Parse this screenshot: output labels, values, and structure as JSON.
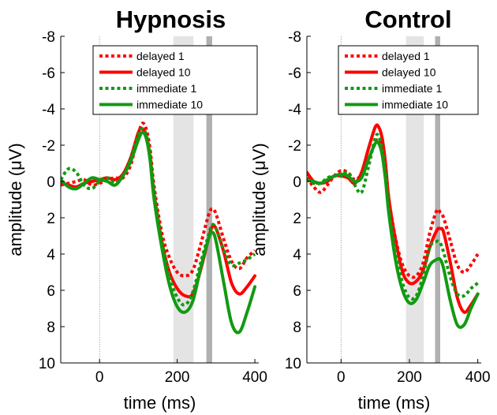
{
  "chart_data": [
    {
      "type": "line",
      "title": "Hypnosis",
      "xlabel": "time (ms)",
      "ylabel": "amplitude (μV)",
      "xlim": [
        -100,
        410
      ],
      "ylim": [
        -8,
        10
      ],
      "y_axis_reversed": true,
      "xticks": [
        0,
        200,
        400
      ],
      "yticks": [
        -8,
        -6,
        -4,
        -2,
        0,
        2,
        4,
        6,
        8,
        10
      ],
      "zero_line_x": 0,
      "shaded_windows": [
        {
          "x": [
            190,
            242
          ],
          "color": "#e4e4e4"
        },
        {
          "x": [
            275,
            290
          ],
          "color": "#b0b0b0"
        }
      ],
      "legend": "top-right",
      "series": [
        {
          "name": "delayed 1",
          "color": "#ff0000",
          "style": "dotted",
          "x": [
            -100,
            -80,
            -60,
            -40,
            -20,
            0,
            20,
            40,
            60,
            80,
            100,
            110,
            120,
            130,
            140,
            160,
            180,
            200,
            220,
            240,
            260,
            280,
            290,
            300,
            320,
            340,
            360,
            380,
            400
          ],
          "y": [
            0.2,
            0.1,
            0.0,
            -0.1,
            0.2,
            0.1,
            -0.1,
            -0.2,
            -0.2,
            -0.9,
            -2.6,
            -3.2,
            -2.9,
            -1.8,
            0.2,
            2.8,
            4.2,
            5.0,
            5.2,
            4.9,
            3.5,
            1.9,
            1.5,
            1.8,
            3.2,
            4.4,
            4.8,
            4.2,
            3.8
          ]
        },
        {
          "name": "delayed 10",
          "color": "#ff0000",
          "style": "solid",
          "x": [
            -100,
            -80,
            -60,
            -40,
            -20,
            0,
            20,
            40,
            60,
            80,
            100,
            110,
            120,
            130,
            140,
            160,
            180,
            200,
            220,
            240,
            260,
            280,
            290,
            300,
            320,
            340,
            360,
            380,
            400
          ],
          "y": [
            0.1,
            0.2,
            0.3,
            0.1,
            0.0,
            -0.1,
            -0.2,
            -0.1,
            -0.4,
            -1.3,
            -2.7,
            -2.9,
            -2.5,
            -1.3,
            0.7,
            3.3,
            5.0,
            5.9,
            6.3,
            6.2,
            4.9,
            3.2,
            2.5,
            2.6,
            3.9,
            5.6,
            6.2,
            5.8,
            5.2
          ]
        },
        {
          "name": "immediate 1",
          "color": "#119a11",
          "style": "dotted",
          "x": [
            -100,
            -80,
            -60,
            -40,
            -20,
            0,
            20,
            40,
            60,
            80,
            100,
            110,
            120,
            130,
            140,
            160,
            180,
            200,
            220,
            240,
            260,
            280,
            290,
            300,
            320,
            340,
            360,
            380,
            400
          ],
          "y": [
            -0.1,
            -0.7,
            -0.5,
            0.2,
            0.4,
            0.0,
            -0.2,
            0.1,
            -0.3,
            -1.2,
            -2.6,
            -2.9,
            -2.6,
            -1.5,
            0.5,
            3.2,
            5.2,
            6.4,
            6.8,
            6.1,
            4.5,
            3.0,
            2.4,
            2.6,
            3.8,
            4.6,
            4.5,
            4.3,
            4.0
          ]
        },
        {
          "name": "immediate 10",
          "color": "#119a11",
          "style": "solid",
          "x": [
            -100,
            -80,
            -60,
            -40,
            -20,
            0,
            20,
            40,
            60,
            80,
            100,
            110,
            120,
            130,
            140,
            160,
            180,
            200,
            220,
            240,
            260,
            280,
            290,
            300,
            320,
            340,
            360,
            380,
            400
          ],
          "y": [
            -0.1,
            0.3,
            0.4,
            0.1,
            -0.2,
            -0.1,
            0.0,
            0.2,
            -0.3,
            -1.1,
            -2.3,
            -2.7,
            -2.4,
            -1.2,
            0.9,
            3.6,
            5.7,
            6.9,
            7.2,
            6.6,
            4.8,
            3.2,
            2.8,
            3.3,
            5.6,
            7.8,
            8.3,
            7.2,
            5.8
          ]
        }
      ]
    },
    {
      "type": "line",
      "title": "Control",
      "xlabel": "time (ms)",
      "ylabel": "amplitude (μV)",
      "xlim": [
        -100,
        410
      ],
      "ylim": [
        -8,
        10
      ],
      "y_axis_reversed": true,
      "xticks": [
        0,
        200,
        400
      ],
      "yticks": [
        -8,
        -6,
        -4,
        -2,
        0,
        2,
        4,
        6,
        8,
        10
      ],
      "zero_line_x": 0,
      "shaded_windows": [
        {
          "x": [
            190,
            242
          ],
          "color": "#e4e4e4"
        },
        {
          "x": [
            275,
            290
          ],
          "color": "#b0b0b0"
        }
      ],
      "legend": "top-right",
      "series": [
        {
          "name": "delayed 1",
          "color": "#ff0000",
          "style": "dotted",
          "x": [
            -100,
            -80,
            -60,
            -40,
            -20,
            0,
            20,
            40,
            60,
            80,
            100,
            110,
            120,
            130,
            140,
            160,
            180,
            200,
            220,
            240,
            260,
            280,
            290,
            300,
            320,
            340,
            360,
            380,
            400
          ],
          "y": [
            -0.2,
            0.3,
            0.6,
            0.2,
            -0.3,
            -0.6,
            -0.5,
            -0.1,
            -0.4,
            -1.2,
            -2.1,
            -2.3,
            -1.8,
            -0.7,
            1.0,
            3.2,
            4.6,
            5.2,
            5.2,
            4.5,
            2.8,
            1.6,
            1.7,
            2.0,
            3.3,
            4.6,
            5.0,
            4.6,
            4.0
          ]
        },
        {
          "name": "delayed 10",
          "color": "#ff0000",
          "style": "solid",
          "x": [
            -100,
            -80,
            -60,
            -40,
            -20,
            0,
            20,
            40,
            60,
            80,
            100,
            110,
            120,
            130,
            140,
            160,
            180,
            200,
            220,
            240,
            260,
            280,
            290,
            300,
            320,
            340,
            360,
            380,
            400
          ],
          "y": [
            -0.5,
            0.0,
            0.1,
            0.0,
            -0.3,
            -0.3,
            -0.2,
            0.1,
            -0.5,
            -1.8,
            -3.0,
            -3.0,
            -2.4,
            -1.0,
            1.0,
            3.3,
            5.0,
            5.6,
            5.5,
            4.9,
            3.6,
            2.7,
            2.6,
            2.8,
            4.5,
            6.4,
            7.2,
            6.8,
            6.2
          ]
        },
        {
          "name": "immediate 1",
          "color": "#119a11",
          "style": "dotted",
          "x": [
            -100,
            -80,
            -60,
            -40,
            -20,
            0,
            20,
            40,
            60,
            80,
            100,
            110,
            120,
            130,
            140,
            160,
            180,
            200,
            220,
            240,
            260,
            280,
            290,
            300,
            320,
            340,
            360,
            380,
            400
          ],
          "y": [
            -0.1,
            0.1,
            0.1,
            -0.2,
            -0.3,
            -0.3,
            -0.5,
            0.2,
            0.6,
            -0.8,
            -2.4,
            -2.5,
            -1.8,
            -0.5,
            1.6,
            3.9,
            5.6,
            6.4,
            6.3,
            5.2,
            3.6,
            3.3,
            3.4,
            3.9,
            5.3,
            6.2,
            6.3,
            5.9,
            5.6
          ]
        },
        {
          "name": "immediate 10",
          "color": "#119a11",
          "style": "solid",
          "x": [
            -100,
            -80,
            -60,
            -40,
            -20,
            0,
            20,
            40,
            60,
            80,
            100,
            110,
            120,
            130,
            140,
            160,
            180,
            200,
            220,
            240,
            260,
            280,
            290,
            300,
            320,
            340,
            360,
            380,
            400
          ],
          "y": [
            -0.1,
            0.0,
            0.1,
            -0.1,
            -0.3,
            -0.4,
            -0.3,
            0.0,
            -0.2,
            -1.2,
            -2.1,
            -2.1,
            -1.5,
            -0.1,
            1.8,
            4.4,
            6.0,
            6.7,
            6.5,
            5.6,
            4.6,
            4.3,
            4.3,
            4.8,
            6.6,
            7.9,
            7.9,
            7.0,
            6.2
          ]
        }
      ]
    }
  ]
}
